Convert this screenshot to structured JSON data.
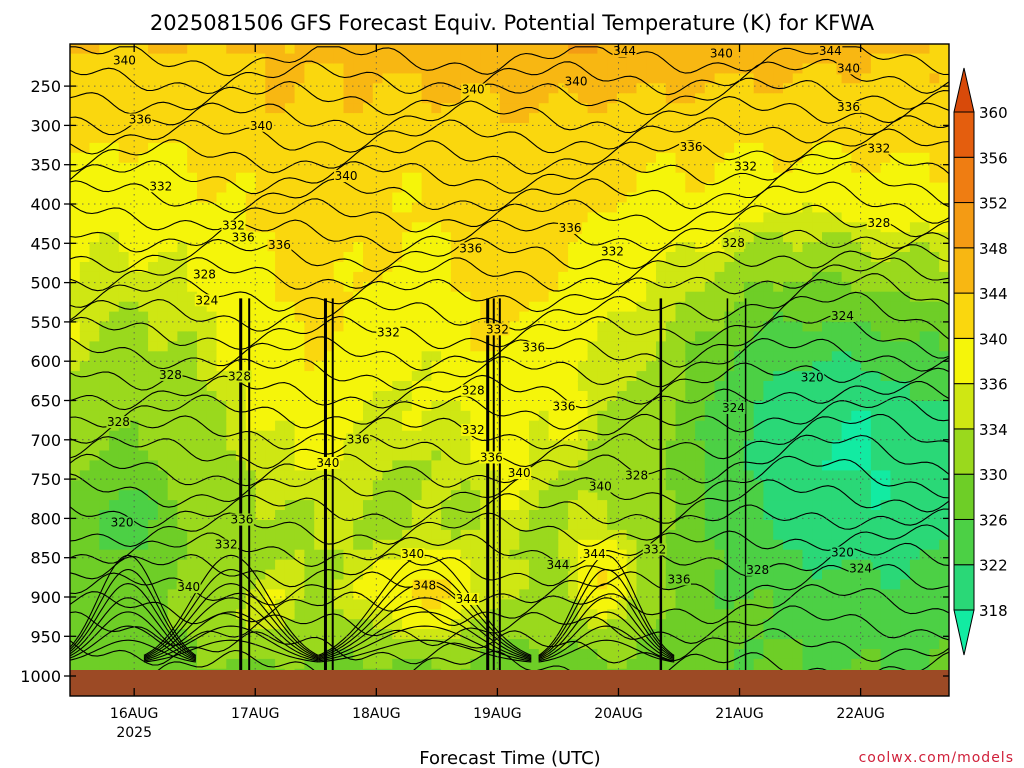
{
  "chart_data": {
    "type": "heatmap",
    "title": "2025081506 GFS Forecast Equiv. Potential Temperature (K) for KFWA",
    "xlabel": "Forecast Time (UTC)",
    "ylabel": "",
    "x_ticks": [
      {
        "label": "16AUG",
        "sub": "2025",
        "day": 16
      },
      {
        "label": "17AUG",
        "sub": "",
        "day": 17
      },
      {
        "label": "18AUG",
        "sub": "",
        "day": 18
      },
      {
        "label": "19AUG",
        "sub": "",
        "day": 19
      },
      {
        "label": "20AUG",
        "sub": "",
        "day": 20
      },
      {
        "label": "21AUG",
        "sub": "",
        "day": 21
      },
      {
        "label": "22AUG",
        "sub": "",
        "day": 22
      }
    ],
    "xlim_days": [
      15.47,
      22.73
    ],
    "y_ticks": [
      250,
      300,
      350,
      400,
      450,
      500,
      550,
      600,
      650,
      700,
      750,
      800,
      850,
      900,
      950,
      1000
    ],
    "ylim": [
      200,
      1000
    ],
    "y_axis": "pressure (hPa), reversed",
    "colorbar": {
      "labels": [
        318,
        322,
        326,
        330,
        334,
        336,
        340,
        344,
        348,
        352,
        356,
        360
      ],
      "colors": [
        "#12eba2",
        "#2ad877",
        "#4cd045",
        "#6ece27",
        "#9ad91d",
        "#cfe713",
        "#f5f50a",
        "#fad70e",
        "#f8b712",
        "#f49b14",
        "#ef7d12",
        "#e45e0e",
        "#d84a0a"
      ],
      "extend": "both"
    },
    "contour_labels": [
      {
        "t": 15.92,
        "p": 220,
        "v": "340"
      },
      {
        "t": 16.05,
        "p": 295,
        "v": "336"
      },
      {
        "t": 16.22,
        "p": 380,
        "v": "332"
      },
      {
        "t": 16.82,
        "p": 430,
        "v": "332"
      },
      {
        "t": 16.9,
        "p": 445,
        "v": "336"
      },
      {
        "t": 17.2,
        "p": 455,
        "v": "336"
      },
      {
        "t": 17.05,
        "p": 303,
        "v": "340"
      },
      {
        "t": 16.58,
        "p": 492,
        "v": "328"
      },
      {
        "t": 16.6,
        "p": 525,
        "v": "324"
      },
      {
        "t": 16.3,
        "p": 620,
        "v": "328"
      },
      {
        "t": 16.87,
        "p": 622,
        "v": "328"
      },
      {
        "t": 15.87,
        "p": 680,
        "v": "328"
      },
      {
        "t": 15.9,
        "p": 808,
        "v": "320"
      },
      {
        "t": 16.89,
        "p": 804,
        "v": "336"
      },
      {
        "t": 16.76,
        "p": 836,
        "v": "332"
      },
      {
        "t": 16.45,
        "p": 890,
        "v": "340"
      },
      {
        "t": 17.75,
        "p": 367,
        "v": "340"
      },
      {
        "t": 17.85,
        "p": 702,
        "v": "336"
      },
      {
        "t": 17.6,
        "p": 732,
        "v": "340"
      },
      {
        "t": 18.1,
        "p": 566,
        "v": "332"
      },
      {
        "t": 18.8,
        "p": 257,
        "v": "340"
      },
      {
        "t": 19.65,
        "p": 247,
        "v": "340"
      },
      {
        "t": 18.78,
        "p": 459,
        "v": "336"
      },
      {
        "t": 19.0,
        "p": 562,
        "v": "332"
      },
      {
        "t": 19.3,
        "p": 585,
        "v": "336"
      },
      {
        "t": 18.8,
        "p": 640,
        "v": "328"
      },
      {
        "t": 18.8,
        "p": 690,
        "v": "332"
      },
      {
        "t": 18.95,
        "p": 725,
        "v": "336"
      },
      {
        "t": 19.18,
        "p": 745,
        "v": "340"
      },
      {
        "t": 19.6,
        "p": 433,
        "v": "336"
      },
      {
        "t": 19.95,
        "p": 463,
        "v": "332"
      },
      {
        "t": 19.55,
        "p": 660,
        "v": "336"
      },
      {
        "t": 19.85,
        "p": 762,
        "v": "340"
      },
      {
        "t": 20.15,
        "p": 748,
        "v": "328"
      },
      {
        "t": 18.3,
        "p": 848,
        "v": "340"
      },
      {
        "t": 18.4,
        "p": 888,
        "v": "348"
      },
      {
        "t": 18.75,
        "p": 905,
        "v": "344"
      },
      {
        "t": 19.5,
        "p": 862,
        "v": "344"
      },
      {
        "t": 19.8,
        "p": 848,
        "v": "344"
      },
      {
        "t": 20.3,
        "p": 842,
        "v": "332"
      },
      {
        "t": 20.5,
        "p": 880,
        "v": "336"
      },
      {
        "t": 20.6,
        "p": 330,
        "v": "336"
      },
      {
        "t": 20.05,
        "p": 208,
        "v": "344"
      },
      {
        "t": 20.85,
        "p": 211,
        "v": "340"
      },
      {
        "t": 21.75,
        "p": 208,
        "v": "344"
      },
      {
        "t": 21.9,
        "p": 230,
        "v": "340"
      },
      {
        "t": 21.9,
        "p": 279,
        "v": "336"
      },
      {
        "t": 21.05,
        "p": 355,
        "v": "332"
      },
      {
        "t": 22.15,
        "p": 332,
        "v": "332"
      },
      {
        "t": 22.15,
        "p": 427,
        "v": "328"
      },
      {
        "t": 20.95,
        "p": 452,
        "v": "328"
      },
      {
        "t": 21.85,
        "p": 545,
        "v": "324"
      },
      {
        "t": 21.6,
        "p": 623,
        "v": "320"
      },
      {
        "t": 20.95,
        "p": 662,
        "v": "324"
      },
      {
        "t": 21.15,
        "p": 868,
        "v": "328"
      },
      {
        "t": 21.85,
        "p": 846,
        "v": "320"
      },
      {
        "t": 22.0,
        "p": 866,
        "v": "324"
      }
    ]
  },
  "credit": "coolwx.com/models"
}
